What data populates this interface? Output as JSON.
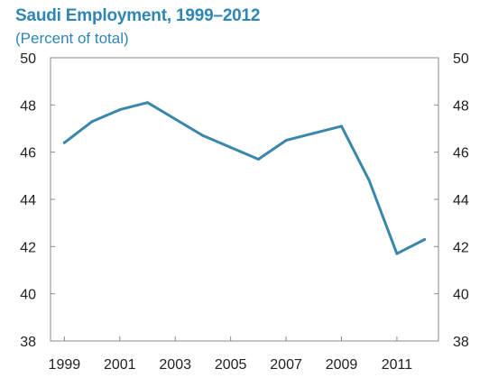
{
  "chart_data": {
    "type": "line",
    "title": "Saudi Employment, 1999–2012",
    "subtitle": "(Percent of total)",
    "xlabel": "",
    "ylabel": "",
    "xlim": [
      1998.5,
      2012.5
    ],
    "ylim": [
      38,
      50
    ],
    "y_ticks": [
      38,
      40,
      42,
      44,
      46,
      48,
      50
    ],
    "x_ticks": [
      1999,
      2001,
      2003,
      2005,
      2007,
      2009,
      2011
    ],
    "x_tick_labels": [
      "1999",
      "2001",
      "2003",
      "2005",
      "2007",
      "2009",
      "2011"
    ],
    "y_tick_labels": [
      "38",
      "40",
      "42",
      "44",
      "46",
      "48",
      "50"
    ],
    "grid": false,
    "legend": "none",
    "y_axis_both_sides": true,
    "series": [
      {
        "color": "#3a87ab",
        "x": [
          1999,
          2000,
          2001,
          2002,
          2003,
          2004,
          2005,
          2006,
          2007,
          2008,
          2009,
          2010,
          2011,
          2012
        ],
        "values": [
          46.4,
          47.3,
          47.8,
          48.1,
          47.4,
          46.7,
          46.2,
          45.7,
          46.5,
          46.8,
          47.1,
          44.8,
          41.7,
          42.3
        ]
      }
    ]
  }
}
